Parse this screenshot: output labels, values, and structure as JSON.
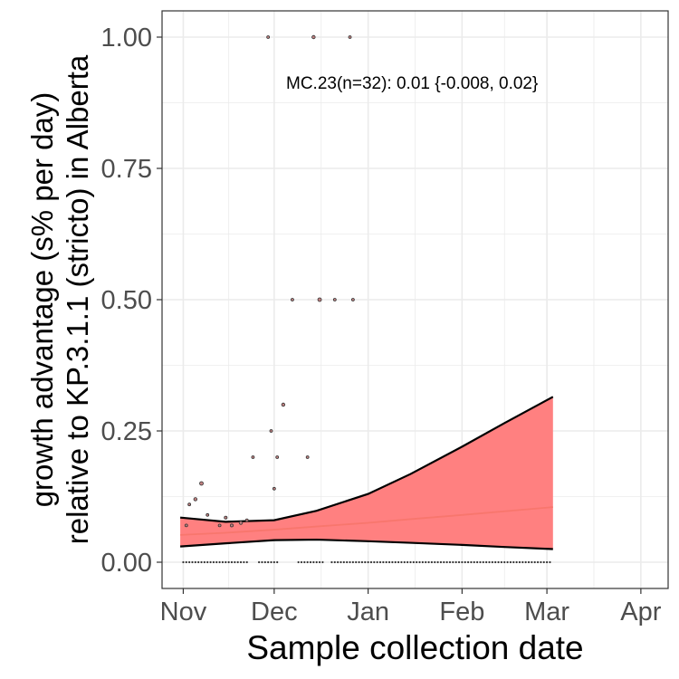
{
  "chart_data": {
    "type": "scatter",
    "xlabel": "Sample collection date",
    "ylabel": "growth advantage (s% per day)\nrelative to KP.3.1.1 (stricto) in Alberta",
    "x_ticks": [
      "Nov",
      "Dec",
      "Jan",
      "Feb",
      "Mar",
      "Apr"
    ],
    "x_tick_dates": [
      "2024-11-01",
      "2024-12-01",
      "2025-01-01",
      "2025-02-01",
      "2025-03-01",
      "2025-04-01"
    ],
    "xlim": [
      "2024-10-25",
      "2025-04-10"
    ],
    "y_ticks": [
      "0.00",
      "0.25",
      "0.50",
      "0.75",
      "1.00"
    ],
    "y_tick_values": [
      0,
      0.25,
      0.5,
      0.75,
      1.0
    ],
    "ylim": [
      -0.05,
      1.05
    ],
    "grid": true,
    "annotation": "MC.23(n=32): 0.01 {-0.008, 0.02}",
    "colors": {
      "ribbon_fill": "#ff8080",
      "fit_line": "#f8766d",
      "ribbon_edge": "#000000",
      "point_fill": "#c08080",
      "point_edge": "#333333",
      "grid": "#ebebeb",
      "panel_border": "#333333"
    },
    "points": [
      {
        "x": "2024-11-02",
        "y": 0.07,
        "size": 1.5
      },
      {
        "x": "2024-11-03",
        "y": 0.11,
        "size": 1.5
      },
      {
        "x": "2024-11-05",
        "y": 0.12,
        "size": 1.8
      },
      {
        "x": "2024-11-07",
        "y": 0.15,
        "size": 2.0
      },
      {
        "x": "2024-11-09",
        "y": 0.09,
        "size": 1.5
      },
      {
        "x": "2024-11-13",
        "y": 0.07,
        "size": 1.5
      },
      {
        "x": "2024-11-15",
        "y": 0.085,
        "size": 1.6
      },
      {
        "x": "2024-11-17",
        "y": 0.07,
        "size": 1.6
      },
      {
        "x": "2024-11-20",
        "y": 0.075,
        "size": 1.8
      },
      {
        "x": "2024-11-22",
        "y": 0.08,
        "size": 1.5
      },
      {
        "x": "2024-11-24",
        "y": 0.2,
        "size": 1.5
      },
      {
        "x": "2024-11-29",
        "y": 1.0,
        "size": 1.5
      },
      {
        "x": "2024-11-30",
        "y": 0.25,
        "size": 1.5
      },
      {
        "x": "2024-12-01",
        "y": 0.14,
        "size": 1.5
      },
      {
        "x": "2024-12-02",
        "y": 0.2,
        "size": 1.5
      },
      {
        "x": "2024-12-04",
        "y": 0.3,
        "size": 1.8
      },
      {
        "x": "2024-12-07",
        "y": 0.5,
        "size": 1.5
      },
      {
        "x": "2024-12-12",
        "y": 0.2,
        "size": 1.5
      },
      {
        "x": "2024-12-14",
        "y": 1.0,
        "size": 1.8
      },
      {
        "x": "2024-12-16",
        "y": 0.5,
        "size": 2.0
      },
      {
        "x": "2024-12-21",
        "y": 0.5,
        "size": 1.5
      },
      {
        "x": "2024-12-26",
        "y": 1.0,
        "size": 1.5
      },
      {
        "x": "2024-12-27",
        "y": 0.5,
        "size": 1.5
      }
    ],
    "zero_points_start": "2024-11-01",
    "zero_points_end": "2025-03-02",
    "zero_points_gaps": [
      [
        "2024-11-23",
        "2024-11-25"
      ],
      [
        "2024-12-03",
        "2024-12-08"
      ],
      [
        "2024-12-18",
        "2024-12-19"
      ]
    ],
    "fit": {
      "x": [
        "2024-10-31",
        "2024-11-15",
        "2024-12-01",
        "2024-12-15",
        "2025-01-01",
        "2025-01-15",
        "2025-02-01",
        "2025-02-15",
        "2025-03-03"
      ],
      "mean": [
        0.052,
        0.056,
        0.062,
        0.068,
        0.075,
        0.082,
        0.09,
        0.097,
        0.105
      ],
      "upper": [
        0.085,
        0.077,
        0.08,
        0.098,
        0.13,
        0.168,
        0.22,
        0.265,
        0.315
      ],
      "lower": [
        0.03,
        0.036,
        0.042,
        0.043,
        0.04,
        0.037,
        0.033,
        0.029,
        0.025
      ]
    }
  }
}
